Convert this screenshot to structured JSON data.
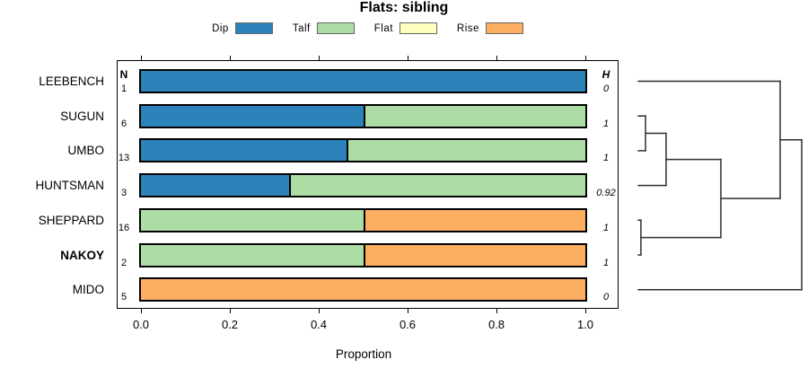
{
  "chart_data": {
    "type": "stacked_bar_horizontal_with_dendrogram",
    "title": "Flats: sibling",
    "xlabel": "Proportion",
    "xlim": [
      0,
      1
    ],
    "x_ticks": {
      "values": [
        0,
        0.2,
        0.4,
        0.6,
        0.8,
        1.0
      ],
      "labels": [
        "0.0",
        "0.2",
        "0.4",
        "0.6",
        "0.8",
        "1.0"
      ]
    },
    "legend": [
      {
        "label": "Dip",
        "color": "#2B83BA"
      },
      {
        "label": "Talf",
        "color": "#ABDDA4"
      },
      {
        "label": "Flat",
        "color": "#FFFFBF"
      },
      {
        "label": "Rise",
        "color": "#FDAE61"
      }
    ],
    "columns": {
      "n_header": "N",
      "h_header": "H"
    },
    "rows": [
      {
        "label": "LEEBENCH",
        "bold": false,
        "n": "1",
        "h": "0",
        "values": [
          1,
          0,
          0,
          0
        ]
      },
      {
        "label": "SUGUN",
        "bold": false,
        "n": "6",
        "h": "1",
        "values": [
          0.5,
          0.5,
          0,
          0
        ]
      },
      {
        "label": "UMBO",
        "bold": false,
        "n": "13",
        "h": "1",
        "values": [
          0.462,
          0.538,
          0,
          0
        ]
      },
      {
        "label": "HUNTSMAN",
        "bold": false,
        "n": "3",
        "h": "0.92",
        "values": [
          0.333,
          0.667,
          0,
          0
        ]
      },
      {
        "label": "SHEPPARD",
        "bold": false,
        "n": "16",
        "h": "1",
        "values": [
          0,
          0.5,
          0,
          0.5
        ]
      },
      {
        "label": "NAKOY",
        "bold": true,
        "n": "2",
        "h": "1",
        "values": [
          0,
          0.5,
          0,
          0.5
        ]
      },
      {
        "label": "MIDO",
        "bold": false,
        "n": "5",
        "h": "0",
        "values": [
          0,
          0,
          0,
          1
        ]
      }
    ],
    "dendrogram": {
      "merges": [
        {
          "id": "m1",
          "children": [
            "SUGUN",
            "UMBO"
          ],
          "height": 0.044
        },
        {
          "id": "m2",
          "children": [
            "m1",
            "HUNTSMAN"
          ],
          "height": 0.17
        },
        {
          "id": "m3",
          "children": [
            "SHEPPARD",
            "NAKOY"
          ],
          "height": 0.016
        },
        {
          "id": "m4",
          "children": [
            "m2",
            "m3"
          ],
          "height": 0.505
        },
        {
          "id": "m5",
          "children": [
            "LEEBENCH",
            "m4"
          ],
          "height": 0.868
        },
        {
          "id": "m6",
          "children": [
            "m5",
            "MIDO"
          ],
          "height": 1.0
        }
      ]
    }
  }
}
